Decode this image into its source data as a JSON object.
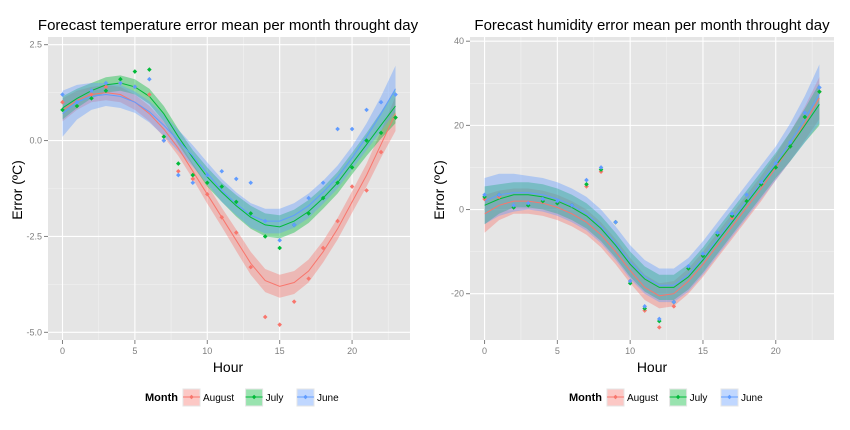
{
  "legend": {
    "title": "Month",
    "entries": [
      "August",
      "July",
      "June"
    ]
  },
  "colors": {
    "August": "#F8766D",
    "July": "#00BA38",
    "June": "#619CFF",
    "panel": "#E5E5E5",
    "grid": "#FFFFFF",
    "tick_text": "#7F7F7F"
  },
  "chart_data": [
    {
      "type": "scatter",
      "title": "Forecast temperature error mean per month throught day",
      "xlabel": "Hour",
      "ylabel": "Error (ºC)",
      "xlim": [
        -1,
        24
      ],
      "ylim": [
        -5.2,
        2.7
      ],
      "xticks": [
        0,
        5,
        10,
        15,
        20
      ],
      "yticks": [
        2.5,
        0.0,
        -2.5,
        -5.0
      ],
      "ytick_labels": [
        "2.5",
        "0.0",
        "-2.5",
        "-5.0"
      ],
      "grid": true,
      "smooth": true,
      "legend_position": "bottom",
      "series": [
        {
          "name": "August",
          "x": [
            0,
            1,
            2,
            3,
            4,
            5,
            6,
            7,
            8,
            9,
            10,
            11,
            12,
            13,
            14,
            15,
            16,
            17,
            18,
            19,
            20,
            21,
            22,
            23
          ],
          "y": [
            1.0,
            0.9,
            1.2,
            1.4,
            1.5,
            1.4,
            1.2,
            0.0,
            -0.8,
            -1.0,
            -1.4,
            -2.0,
            -2.4,
            -3.3,
            -4.6,
            -4.8,
            -4.2,
            -3.6,
            -2.8,
            -2.1,
            -1.2,
            -1.3,
            -0.3,
            0.6
          ],
          "fit": [
            0.8,
            1.05,
            1.2,
            1.25,
            1.2,
            1.0,
            0.7,
            0.3,
            -0.2,
            -0.8,
            -1.4,
            -2.0,
            -2.6,
            -3.2,
            -3.65,
            -3.8,
            -3.7,
            -3.4,
            -2.9,
            -2.3,
            -1.6,
            -0.9,
            -0.1,
            0.7
          ],
          "band": [
            0.3,
            0.25,
            0.2,
            0.2,
            0.2,
            0.2,
            0.2,
            0.2,
            0.2,
            0.2,
            0.25,
            0.25,
            0.28,
            0.3,
            0.3,
            0.3,
            0.3,
            0.3,
            0.28,
            0.28,
            0.28,
            0.3,
            0.35,
            0.45
          ]
        },
        {
          "name": "July",
          "x": [
            0,
            1,
            2,
            3,
            4,
            5,
            6,
            7,
            8,
            9,
            10,
            11,
            12,
            13,
            14,
            15,
            16,
            17,
            18,
            19,
            20,
            21,
            22,
            23
          ],
          "y": [
            0.8,
            0.9,
            1.1,
            1.3,
            1.6,
            1.8,
            1.85,
            0.1,
            -0.6,
            -0.9,
            -1.1,
            -1.2,
            -1.6,
            -1.9,
            -2.5,
            -2.8,
            -2.2,
            -1.9,
            -1.5,
            -1.1,
            -0.7,
            0.0,
            0.2,
            0.6
          ],
          "fit": [
            0.85,
            1.1,
            1.3,
            1.45,
            1.5,
            1.4,
            1.15,
            0.7,
            0.1,
            -0.45,
            -0.95,
            -1.35,
            -1.7,
            -2.0,
            -2.2,
            -2.25,
            -2.1,
            -1.85,
            -1.5,
            -1.1,
            -0.6,
            -0.1,
            0.4,
            0.9
          ],
          "band": [
            0.3,
            0.25,
            0.2,
            0.2,
            0.2,
            0.2,
            0.2,
            0.2,
            0.2,
            0.2,
            0.25,
            0.25,
            0.28,
            0.3,
            0.3,
            0.3,
            0.3,
            0.3,
            0.28,
            0.28,
            0.28,
            0.3,
            0.35,
            0.45
          ]
        },
        {
          "name": "June",
          "x": [
            0,
            1,
            2,
            3,
            4,
            5,
            6,
            7,
            8,
            9,
            10,
            11,
            12,
            13,
            14,
            15,
            16,
            17,
            18,
            19,
            20,
            21,
            22,
            23
          ],
          "y": [
            1.2,
            1.0,
            1.3,
            1.5,
            1.5,
            1.4,
            1.6,
            0.0,
            -0.9,
            -1.1,
            -0.9,
            -0.8,
            -1.0,
            -1.1,
            -2.1,
            -2.6,
            -2.2,
            -1.5,
            -1.1,
            0.3,
            0.3,
            0.8,
            1.0,
            1.2
          ],
          "fit": [
            0.7,
            1.0,
            1.15,
            1.2,
            1.15,
            1.0,
            0.75,
            0.4,
            0.0,
            -0.4,
            -0.85,
            -1.3,
            -1.65,
            -1.95,
            -2.1,
            -2.1,
            -1.95,
            -1.7,
            -1.35,
            -0.95,
            -0.45,
            0.1,
            0.7,
            1.35
          ],
          "band": [
            0.6,
            0.45,
            0.35,
            0.3,
            0.3,
            0.28,
            0.28,
            0.28,
            0.28,
            0.28,
            0.28,
            0.3,
            0.3,
            0.32,
            0.32,
            0.32,
            0.32,
            0.32,
            0.3,
            0.3,
            0.3,
            0.35,
            0.45,
            0.6
          ]
        }
      ]
    },
    {
      "type": "scatter",
      "title": "Forecast humidity error mean per month throught day",
      "xlabel": "Hour",
      "ylabel": "Error (ºC)",
      "xlim": [
        -1,
        24
      ],
      "ylim": [
        -31,
        41
      ],
      "xticks": [
        0,
        5,
        10,
        15,
        20
      ],
      "yticks": [
        40,
        20,
        0,
        -20
      ],
      "ytick_labels": [
        "40",
        "20",
        "0",
        "-20"
      ],
      "grid": true,
      "smooth": true,
      "legend_position": "bottom",
      "series": [
        {
          "name": "August",
          "x": [
            0,
            1,
            2,
            3,
            4,
            5,
            6,
            7,
            8,
            9,
            10,
            11,
            12,
            13,
            14,
            15,
            16,
            17,
            18,
            19,
            20,
            21,
            22,
            23
          ],
          "y": [
            2.5,
            3.0,
            1.0,
            1.5,
            2.0,
            1.5,
            1.0,
            5.5,
            9.0,
            -3.0,
            -17.0,
            -24.0,
            -28.0,
            -23.0,
            -14.0,
            -11.0,
            -6.0,
            -2.0,
            2.0,
            6.0,
            10.0,
            15.0,
            22.0,
            28.0
          ],
          "fit": [
            -1.0,
            1.0,
            2.0,
            2.0,
            1.5,
            0.5,
            -1.0,
            -3.0,
            -6.0,
            -10.0,
            -14.5,
            -18.5,
            -20.5,
            -20.0,
            -17.0,
            -13.0,
            -8.5,
            -4.0,
            0.5,
            5.0,
            10.0,
            15.0,
            20.5,
            26.5
          ],
          "band": [
            4.5,
            3.5,
            3.0,
            3.0,
            3.0,
            3.0,
            3.0,
            3.0,
            3.0,
            3.0,
            3.0,
            3.0,
            3.0,
            3.0,
            3.0,
            3.0,
            3.0,
            3.0,
            3.0,
            3.0,
            3.0,
            3.5,
            4.0,
            5.0
          ]
        },
        {
          "name": "July",
          "x": [
            0,
            1,
            2,
            3,
            4,
            5,
            6,
            7,
            8,
            9,
            10,
            11,
            12,
            13,
            14,
            15,
            16,
            17,
            18,
            19,
            20,
            21,
            22,
            23
          ],
          "y": [
            3.0,
            3.5,
            0.5,
            1.0,
            2.0,
            1.5,
            1.0,
            6.0,
            9.5,
            -3.0,
            -17.5,
            -23.5,
            -26.5,
            -22.0,
            -14.0,
            -11.0,
            -6.0,
            -1.5,
            2.0,
            6.0,
            10.0,
            15.0,
            22.0,
            28.0
          ],
          "fit": [
            1.0,
            2.5,
            3.5,
            3.5,
            3.0,
            2.0,
            0.5,
            -1.5,
            -4.5,
            -8.5,
            -13.0,
            -16.5,
            -18.5,
            -18.5,
            -16.0,
            -12.0,
            -7.5,
            -3.0,
            1.5,
            6.0,
            10.5,
            15.0,
            20.0,
            25.0
          ],
          "band": [
            4.5,
            3.5,
            3.0,
            3.0,
            3.0,
            3.0,
            3.0,
            3.0,
            3.0,
            3.0,
            3.0,
            3.0,
            3.0,
            3.0,
            3.0,
            3.0,
            3.0,
            3.0,
            3.0,
            3.0,
            3.0,
            3.5,
            4.0,
            5.0
          ]
        },
        {
          "name": "June",
          "x": [
            0,
            1,
            2,
            3,
            4,
            5,
            6,
            7,
            8,
            9,
            10,
            11,
            12,
            13,
            14,
            15,
            16,
            17,
            18,
            19,
            20,
            21,
            22,
            23
          ],
          "y": [
            3.5,
            3.5,
            1.0,
            1.5,
            2.5,
            2.0,
            1.0,
            7.0,
            10.0,
            -3.0,
            -17.0,
            -23.0,
            -26.0,
            -22.0,
            -13.5,
            -10.5,
            -5.5,
            -1.0,
            3.5,
            6.5,
            11.0,
            16.0,
            23.0,
            29.0
          ],
          "fit": [
            2.0,
            3.5,
            4.0,
            4.0,
            3.5,
            2.5,
            1.0,
            -1.0,
            -4.0,
            -8.0,
            -12.5,
            -16.0,
            -18.0,
            -18.0,
            -15.5,
            -11.5,
            -7.0,
            -2.5,
            2.0,
            6.5,
            11.0,
            16.0,
            21.5,
            27.5
          ],
          "band": [
            5.5,
            5.0,
            4.5,
            4.0,
            4.0,
            4.0,
            4.0,
            4.0,
            4.0,
            4.0,
            4.0,
            4.0,
            4.0,
            4.0,
            4.0,
            4.0,
            4.0,
            4.0,
            4.0,
            4.0,
            4.0,
            4.5,
            5.5,
            7.0
          ]
        }
      ]
    }
  ]
}
